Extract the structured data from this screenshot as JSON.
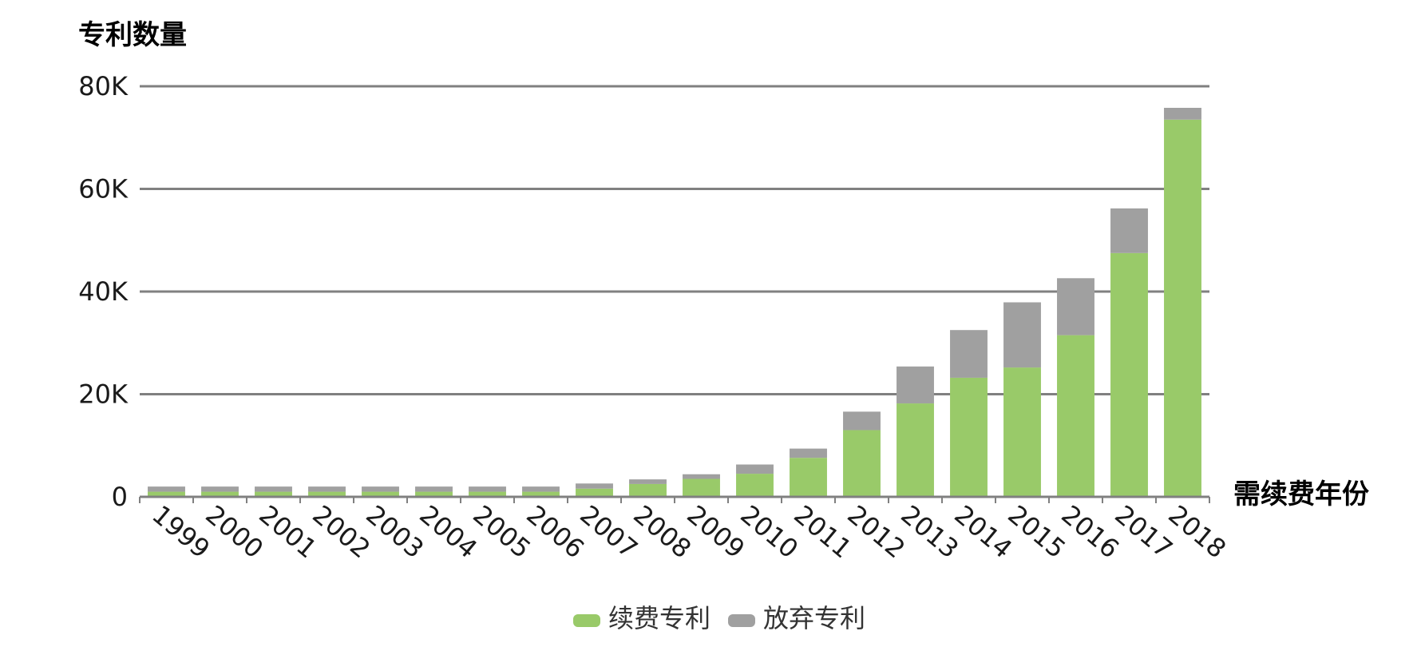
{
  "chart_data": {
    "type": "bar",
    "stacked": true,
    "ylabel": "专利数量",
    "xlabel": "需续费年份",
    "categories": [
      "1999",
      "2000",
      "2001",
      "2002",
      "2003",
      "2004",
      "2005",
      "2006",
      "2007",
      "2008",
      "2009",
      "2010",
      "2011",
      "2012",
      "2013",
      "2014",
      "2015",
      "2016",
      "2017",
      "2018"
    ],
    "series": [
      {
        "name": "续费专利",
        "color": "#99CA69",
        "values": [
          1000,
          1000,
          1000,
          1000,
          1000,
          1000,
          1000,
          1000,
          1600,
          2500,
          3500,
          4500,
          7600,
          13000,
          18200,
          23200,
          25200,
          31500,
          47500,
          73500
        ]
      },
      {
        "name": "放弃专利",
        "color": "#A0A0A0",
        "values": [
          1000,
          1000,
          1000,
          1000,
          1000,
          1000,
          1000,
          1000,
          1000,
          900,
          900,
          1800,
          1800,
          3600,
          7200,
          9300,
          12700,
          11100,
          8700,
          2300
        ]
      }
    ],
    "ylim": [
      0,
      80000
    ],
    "yticks": [
      0,
      20000,
      40000,
      60000,
      80000
    ],
    "ytick_labels": [
      "0",
      "20K",
      "40K",
      "60K",
      "80K"
    ],
    "grid": true,
    "legend_position": "bottom"
  }
}
